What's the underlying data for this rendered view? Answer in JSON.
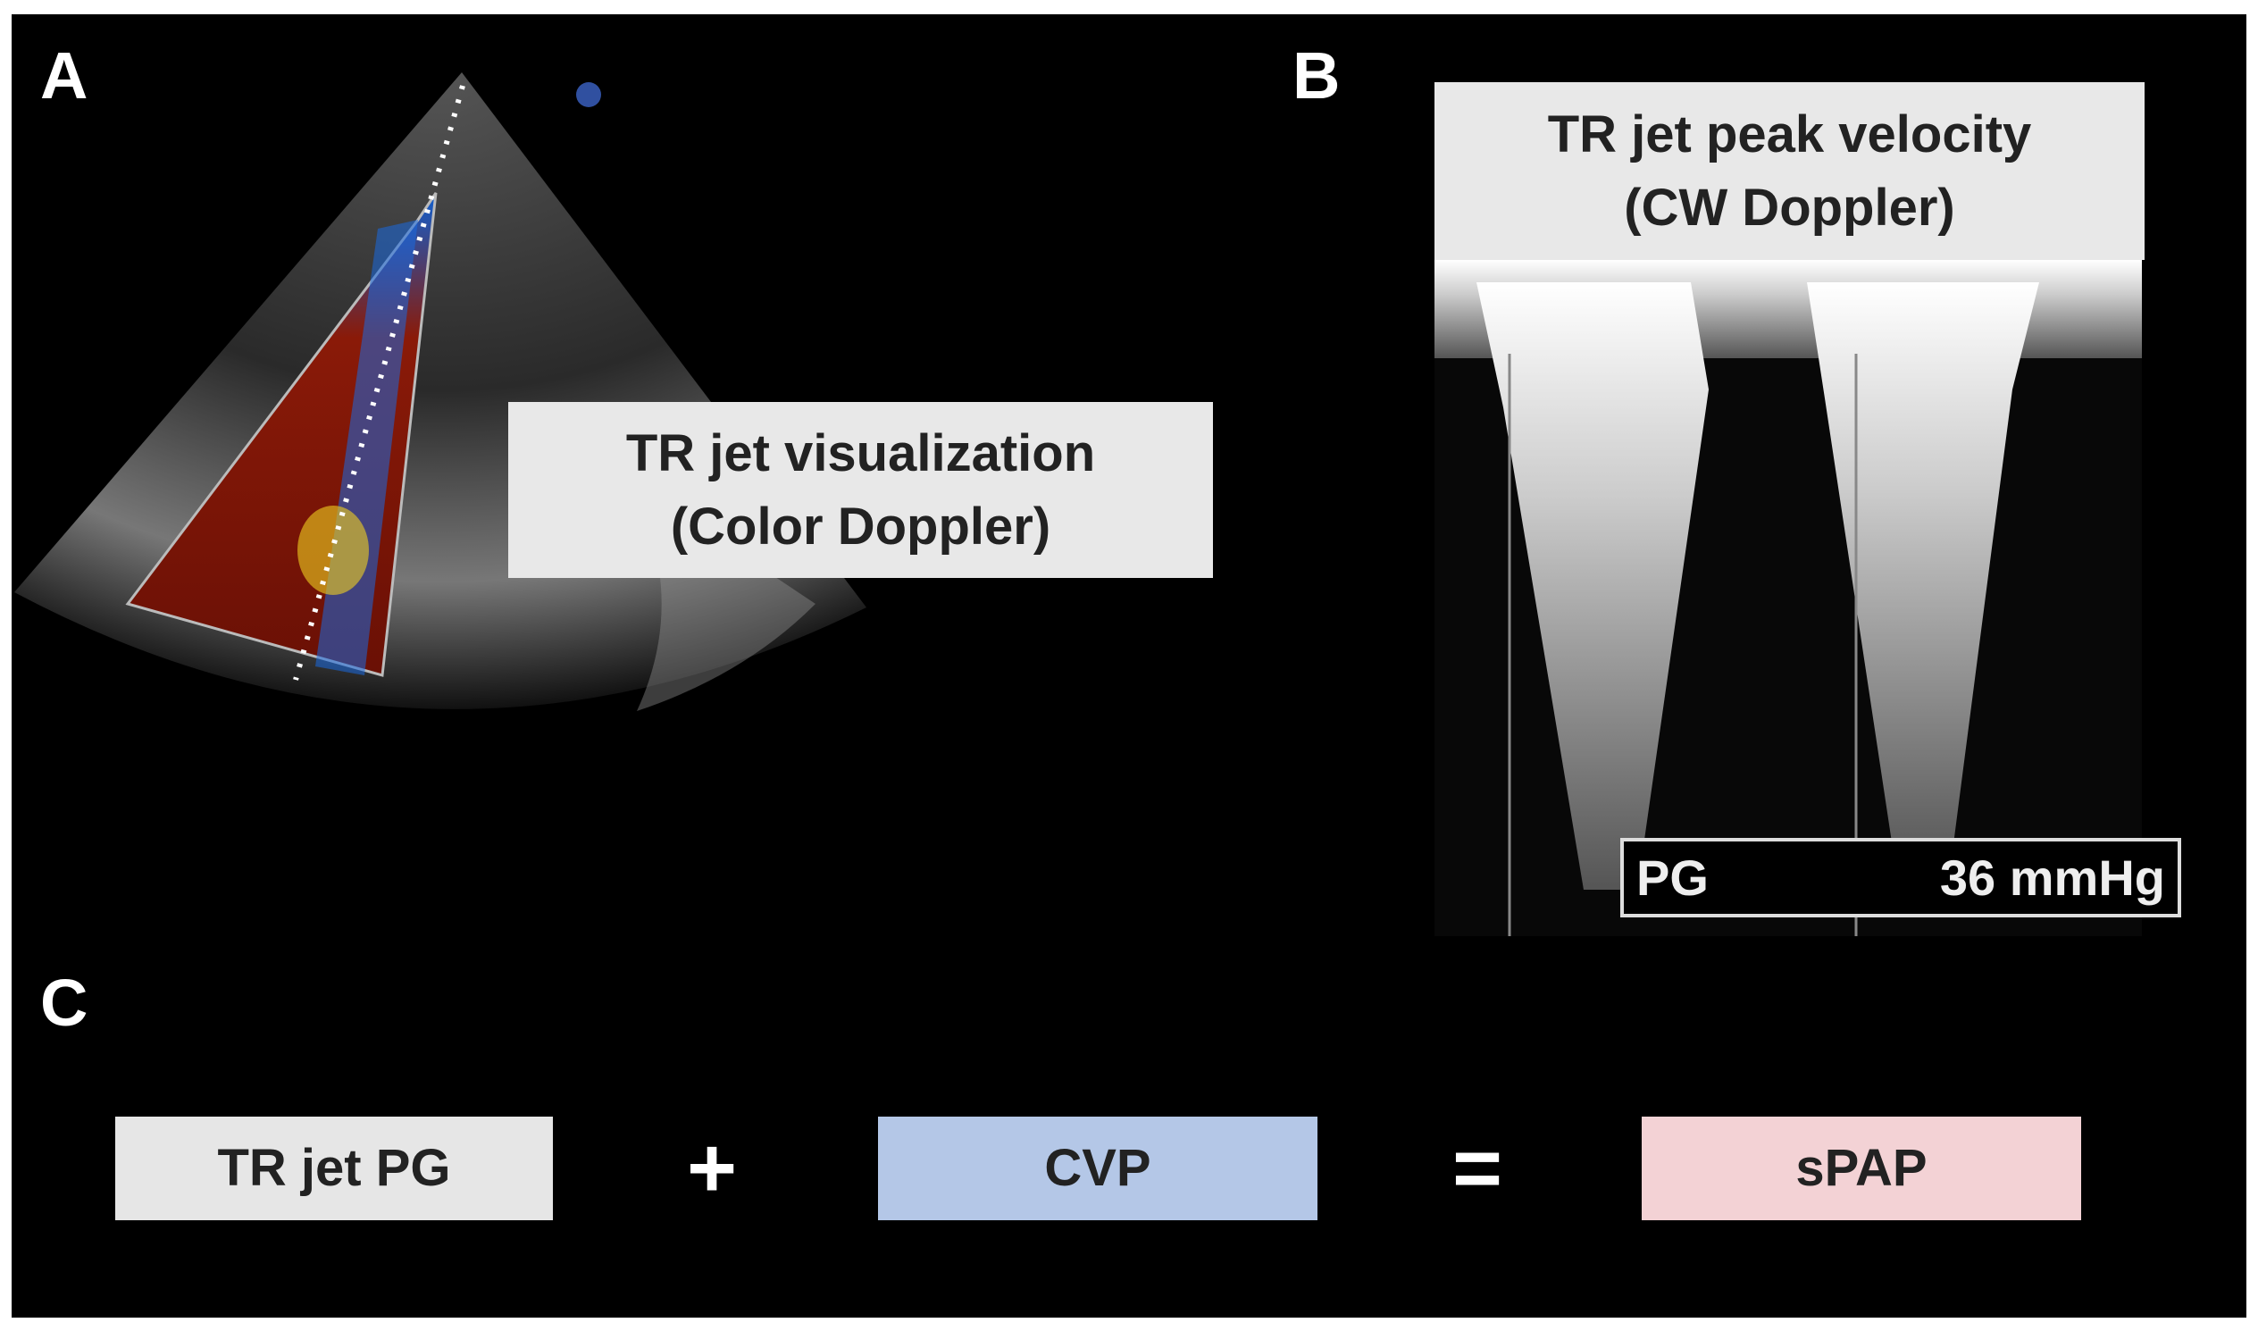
{
  "panel_a": {
    "letter": "A",
    "label_line1": "TR jet visualization",
    "label_line2": "(Color Doppler)"
  },
  "panel_b": {
    "letter": "B",
    "label_line1": "TR jet peak velocity",
    "label_line2": "(CW Doppler)",
    "measure_name": "PG",
    "measure_value": "36 mmHg"
  },
  "panel_c": {
    "letter": "C",
    "term1": "TR jet PG",
    "plus": "+",
    "term2": "CVP",
    "equals": "=",
    "result": "sPAP"
  }
}
